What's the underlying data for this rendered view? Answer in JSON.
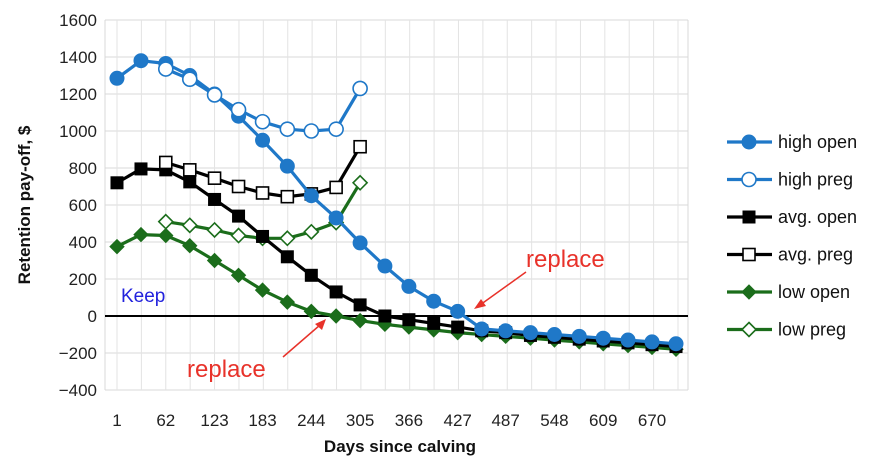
{
  "chart_data": {
    "type": "line",
    "xlabel": "Days since calving",
    "ylabel": "Retention pay-off, $",
    "ylim": [
      -400,
      1600
    ],
    "y_ticks": [
      1600,
      1400,
      1200,
      1000,
      800,
      600,
      400,
      200,
      0,
      -200,
      -400
    ],
    "x_tick_labels": [
      "1",
      "62",
      "123",
      "183",
      "244",
      "305",
      "366",
      "427",
      "487",
      "548",
      "609",
      "670"
    ],
    "x_tick_values": [
      1,
      62,
      123,
      183,
      244,
      305,
      366,
      427,
      487,
      548,
      609,
      670
    ],
    "xlim": [
      -14,
      715
    ],
    "grid": true,
    "legend_position": "right",
    "colors": {
      "high": "#1f78c8",
      "avg": "#000000",
      "low": "#1b6d1b",
      "annotation": "#e8322a",
      "keep": "#2222dd"
    },
    "series": [
      {
        "name": "high open",
        "color": "#1f78c8",
        "marker": "circle",
        "filled": true,
        "points": [
          [
            1,
            1285
          ],
          [
            31,
            1380
          ],
          [
            62,
            1365
          ],
          [
            92,
            1300
          ],
          [
            123,
            1200
          ],
          [
            153,
            1080
          ],
          [
            183,
            950
          ],
          [
            214,
            810
          ],
          [
            244,
            650
          ],
          [
            275,
            530
          ],
          [
            305,
            395
          ],
          [
            336,
            270
          ],
          [
            366,
            160
          ],
          [
            397,
            80
          ],
          [
            427,
            25
          ],
          [
            457,
            -70
          ],
          [
            487,
            -80
          ],
          [
            518,
            -90
          ],
          [
            548,
            -100
          ],
          [
            579,
            -110
          ],
          [
            609,
            -120
          ],
          [
            640,
            -130
          ],
          [
            670,
            -140
          ],
          [
            700,
            -150
          ]
        ]
      },
      {
        "name": "high preg",
        "color": "#1f78c8",
        "marker": "circle",
        "filled": false,
        "points": [
          [
            62,
            1335
          ],
          [
            92,
            1280
          ],
          [
            123,
            1195
          ],
          [
            153,
            1115
          ],
          [
            183,
            1050
          ],
          [
            214,
            1010
          ],
          [
            244,
            1000
          ],
          [
            275,
            1010
          ],
          [
            305,
            1230
          ]
        ]
      },
      {
        "name": "avg. open",
        "color": "#000000",
        "marker": "square",
        "filled": true,
        "points": [
          [
            1,
            720
          ],
          [
            31,
            795
          ],
          [
            62,
            790
          ],
          [
            92,
            725
          ],
          [
            123,
            630
          ],
          [
            153,
            540
          ],
          [
            183,
            430
          ],
          [
            214,
            320
          ],
          [
            244,
            220
          ],
          [
            275,
            130
          ],
          [
            305,
            60
          ],
          [
            336,
            0
          ],
          [
            366,
            -20
          ],
          [
            397,
            -40
          ],
          [
            427,
            -60
          ],
          [
            457,
            -80
          ],
          [
            487,
            -90
          ],
          [
            518,
            -105
          ],
          [
            548,
            -115
          ],
          [
            579,
            -125
          ],
          [
            609,
            -135
          ],
          [
            640,
            -145
          ],
          [
            670,
            -155
          ],
          [
            700,
            -165
          ]
        ]
      },
      {
        "name": "avg. preg",
        "color": "#000000",
        "marker": "square",
        "filled": false,
        "points": [
          [
            62,
            830
          ],
          [
            92,
            790
          ],
          [
            123,
            745
          ],
          [
            153,
            700
          ],
          [
            183,
            665
          ],
          [
            214,
            645
          ],
          [
            244,
            660
          ],
          [
            275,
            695
          ],
          [
            305,
            915
          ]
        ]
      },
      {
        "name": "low open",
        "color": "#1b6d1b",
        "marker": "diamond",
        "filled": true,
        "points": [
          [
            1,
            375
          ],
          [
            31,
            440
          ],
          [
            62,
            435
          ],
          [
            92,
            380
          ],
          [
            123,
            300
          ],
          [
            153,
            220
          ],
          [
            183,
            140
          ],
          [
            214,
            75
          ],
          [
            244,
            25
          ],
          [
            275,
            0
          ],
          [
            305,
            -25
          ],
          [
            336,
            -45
          ],
          [
            366,
            -60
          ],
          [
            397,
            -75
          ],
          [
            427,
            -90
          ],
          [
            457,
            -100
          ],
          [
            487,
            -110
          ],
          [
            518,
            -120
          ],
          [
            548,
            -130
          ],
          [
            579,
            -140
          ],
          [
            609,
            -150
          ],
          [
            640,
            -160
          ],
          [
            670,
            -170
          ],
          [
            700,
            -180
          ]
        ]
      },
      {
        "name": "low preg",
        "color": "#1b6d1b",
        "marker": "diamond",
        "filled": false,
        "points": [
          [
            62,
            510
          ],
          [
            92,
            490
          ],
          [
            123,
            465
          ],
          [
            153,
            435
          ],
          [
            183,
            420
          ],
          [
            214,
            420
          ],
          [
            244,
            455
          ],
          [
            275,
            505
          ],
          [
            305,
            720
          ]
        ]
      }
    ],
    "annotations": {
      "keep": "Keep",
      "replace_right": "replace",
      "replace_left": "replace"
    }
  }
}
